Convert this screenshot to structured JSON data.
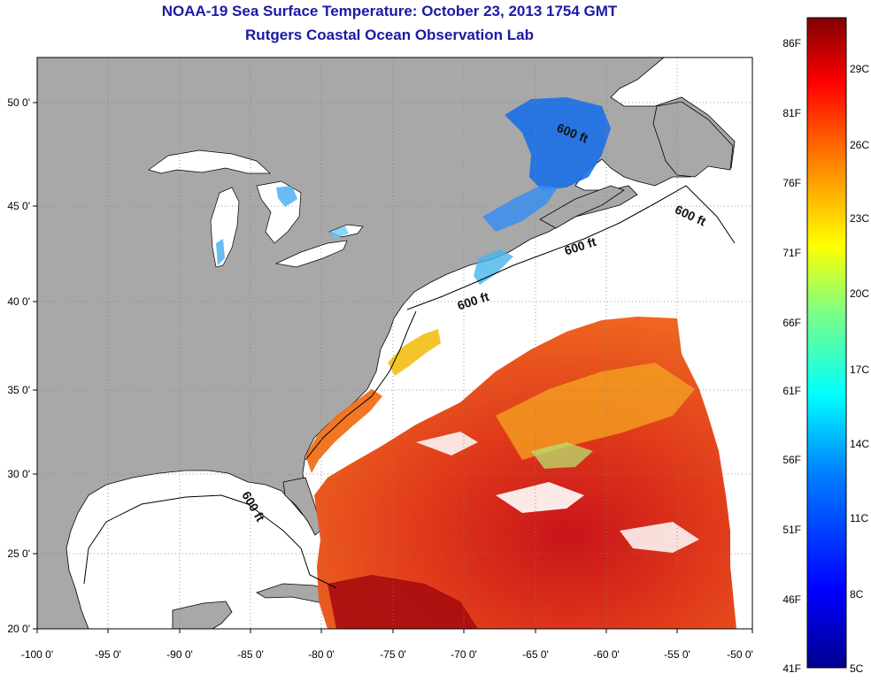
{
  "title": "NOAA-19 Sea Surface Temperature:  October 23, 2013 1754 GMT",
  "subtitle": "Rutgers Coastal Ocean Observation Lab",
  "map": {
    "lon_range": [
      -100,
      -50
    ],
    "lat_range": [
      20,
      52.5
    ],
    "lon_ticks": [
      "-100 0'",
      "-95 0'",
      "-90 0'",
      "-85 0'",
      "-80 0'",
      "-75 0'",
      "-70 0'",
      "-65 0'",
      "-60 0'",
      "-55 0'",
      "-50 0'"
    ],
    "lat_ticks": [
      "20 0'",
      "25 0'",
      "30 0'",
      "35 0'",
      "40 0'",
      "45 0'",
      "50 0'"
    ],
    "grid": "dotted",
    "land_color": "#a8a8a8",
    "ocean_color": "#ffffff",
    "contour_labels": [
      "600 ft",
      "600 ft",
      "600 ft",
      "600 ft",
      "600 ft"
    ]
  },
  "colorbar": {
    "fahrenheit_labels": [
      "86F",
      "81F",
      "76F",
      "71F",
      "66F",
      "61F",
      "56F",
      "51F",
      "46F",
      "41F"
    ],
    "celsius_labels": [
      "29C",
      "26C",
      "23C",
      "20C",
      "17C",
      "14C",
      "11C",
      "8C",
      "5C"
    ],
    "colors": [
      "#00008f",
      "#0000ff",
      "#0080ff",
      "#00ffff",
      "#80ff80",
      "#ffff00",
      "#ff8000",
      "#ff0000",
      "#800000"
    ],
    "range_c": [
      5,
      31
    ]
  }
}
